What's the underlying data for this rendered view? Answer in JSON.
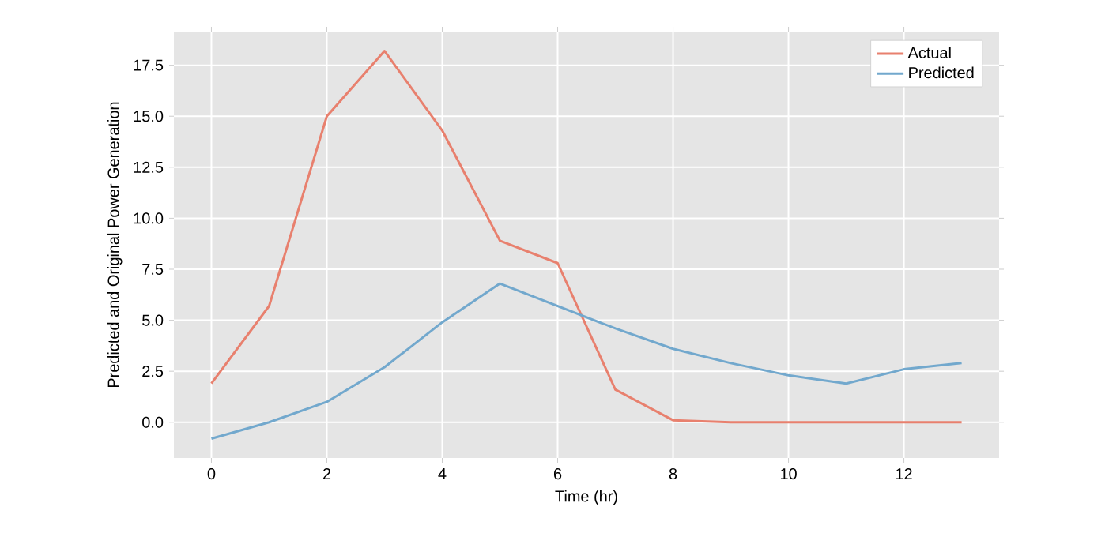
{
  "chart_data": {
    "type": "line",
    "xlabel": "Time (hr)",
    "ylabel": "Predicted and Original Power Generation",
    "x": [
      0,
      1,
      2,
      3,
      4,
      5,
      6,
      7,
      8,
      9,
      10,
      11,
      12,
      13
    ],
    "series": [
      {
        "name": "Actual",
        "color": "#e8806e",
        "values": [
          1.9,
          5.7,
          15.0,
          18.2,
          14.3,
          8.9,
          7.8,
          1.6,
          0.1,
          0.0,
          0.0,
          0.0,
          0.0,
          0.0
        ]
      },
      {
        "name": "Predicted",
        "color": "#72a8cd",
        "values": [
          -0.8,
          0.0,
          1.0,
          2.7,
          4.9,
          6.8,
          5.7,
          4.6,
          3.6,
          2.9,
          2.3,
          1.9,
          2.6,
          2.9
        ]
      }
    ],
    "xlim": [
      -0.65,
      13.65
    ],
    "ylim": [
      -1.75,
      19.15
    ],
    "xticks": [
      0,
      2,
      4,
      6,
      8,
      10,
      12
    ],
    "yticks": [
      {
        "value": 0,
        "label": "0.0"
      },
      {
        "value": 2.5,
        "label": "2.5"
      },
      {
        "value": 5,
        "label": "5.0"
      },
      {
        "value": 7.5,
        "label": "7.5"
      },
      {
        "value": 10,
        "label": "10.0"
      },
      {
        "value": 12.5,
        "label": "12.5"
      },
      {
        "value": 15,
        "label": "15.0"
      },
      {
        "value": 17.5,
        "label": "17.5"
      }
    ],
    "grid": true,
    "legend": "top right",
    "marker": "none",
    "line_style": "solid"
  }
}
